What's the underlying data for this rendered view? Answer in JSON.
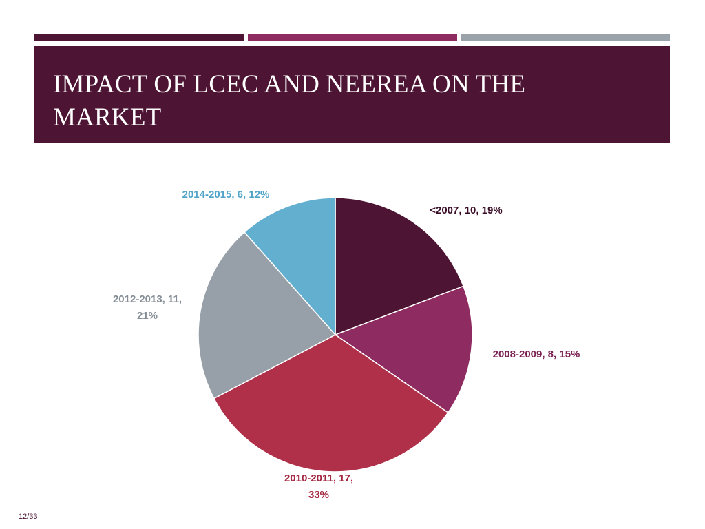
{
  "colors": {
    "bar_1": "#4d1433",
    "bar_2": "#8e2c62",
    "bar_3": "#9aa3aa",
    "title_bg": "#4d1433"
  },
  "slide": {
    "title_line1": "IMPACT OF LCEC AND NEEREA ON THE",
    "title_line2": "MARKET",
    "page_number": "12/33"
  },
  "chart_data": {
    "type": "pie",
    "title": "",
    "start_angle_deg": 0,
    "direction": "clockwise",
    "slices": [
      {
        "category": "<2007",
        "value": 10,
        "percent": "19%",
        "label_lines": [
          "<2007, 10, 19%"
        ],
        "color": "#4d1433",
        "label_color": "#3a0d26"
      },
      {
        "category": "2008-2009",
        "value": 8,
        "percent": "15%",
        "label_lines": [
          "2008-2009, 8, 15%"
        ],
        "color": "#8e2c62",
        "label_color": "#7a1f52"
      },
      {
        "category": "2010-2011",
        "value": 17,
        "percent": "33%",
        "label_lines": [
          "2010-2011, 17,",
          "33%"
        ],
        "color": "#b02f49",
        "label_color": "#a32640"
      },
      {
        "category": "2012-2013",
        "value": 11,
        "percent": "21%",
        "label_lines": [
          "2012-2013, 11,",
          "21%"
        ],
        "color": "#97a0a8",
        "label_color": "#858e97"
      },
      {
        "category": "2014-2015",
        "value": 6,
        "percent": "12%",
        "label_lines": [
          "2014-2015, 6, 12%"
        ],
        "color": "#63afd0",
        "label_color": "#4fa3c7"
      }
    ]
  }
}
